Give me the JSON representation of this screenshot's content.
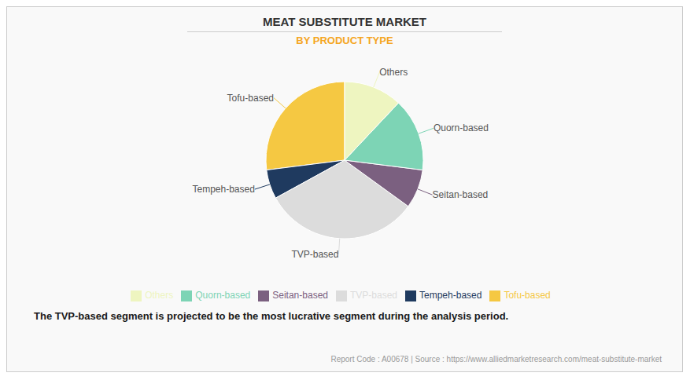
{
  "chart_data": {
    "type": "pie",
    "title": "MEAT SUBSTITUTE MARKET",
    "subtitle": "BY PRODUCT TYPE",
    "categories": [
      "Tofu-based",
      "Tempeh-based",
      "TVP-based",
      "Seitan-based",
      "Quorn-based",
      "Others"
    ],
    "values": [
      27,
      6,
      32,
      8,
      15,
      12
    ],
    "colors": [
      "#f5c842",
      "#1f3a5f",
      "#dcdcdc",
      "#7b6080",
      "#7dd4b5",
      "#eef5c0"
    ],
    "legend": "bottom",
    "annotations": [
      "The TVP-based segment is projected to be the most lucrative segment during the analysis period.",
      "Report Code : A00678  |  Source : https://www.alliedmarketresearch.com/meat-substitute-market"
    ]
  }
}
